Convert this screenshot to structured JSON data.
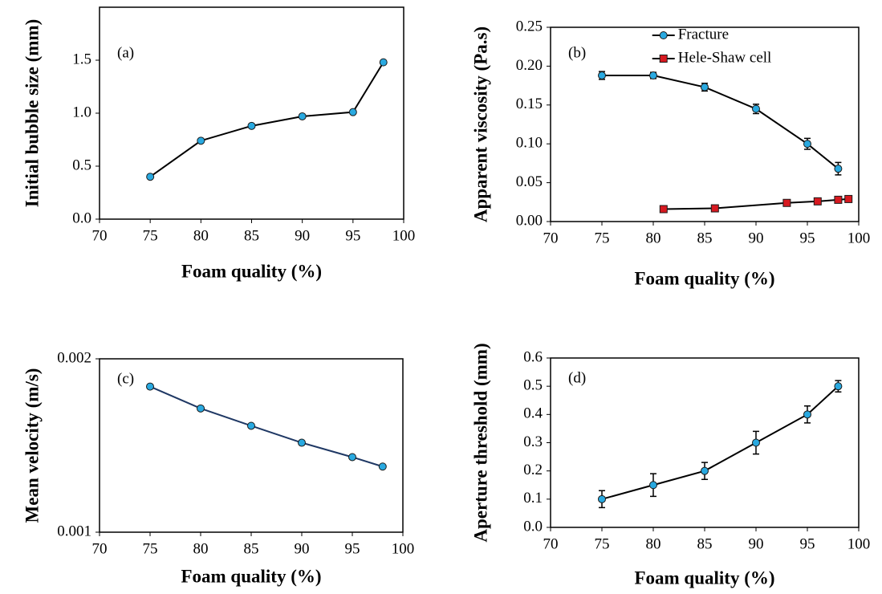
{
  "chart_data": [
    {
      "type": "line",
      "annotation": "(a)",
      "x_label": "Foam quality (%)",
      "y_label": "Initial bubble size (mm)",
      "xlim": [
        70,
        100
      ],
      "xticks": [
        70,
        75,
        80,
        85,
        90,
        95,
        100
      ],
      "ylim": [
        0,
        2
      ],
      "yticks": [
        {
          "value": 0,
          "label": "0.0"
        },
        0.5,
        {
          "value": 1,
          "label": "1.0"
        },
        1.5
      ],
      "series": [
        {
          "color": "#000000",
          "marker": "circle",
          "marker_color": "#29a9e0",
          "x": [
            75,
            80,
            85,
            90,
            95,
            98
          ],
          "values": [
            0.4,
            0.74,
            0.88,
            0.97,
            1.01,
            1.48
          ]
        }
      ]
    },
    {
      "type": "line",
      "annotation": "(b)",
      "x_label": "Foam quality (%)",
      "y_label": "Apparent viscosity (Pa.s)",
      "xlim": [
        70,
        100
      ],
      "xticks": [
        70,
        75,
        80,
        85,
        90,
        95,
        100
      ],
      "ylim": [
        0,
        0.25
      ],
      "yticks": [
        {
          "value": 0,
          "label": "0.00"
        },
        {
          "value": 0.05,
          "label": "0.05"
        },
        {
          "value": 0.1,
          "label": "0.10"
        },
        {
          "value": 0.15,
          "label": "0.15"
        },
        {
          "value": 0.2,
          "label": "0.20"
        },
        {
          "value": 0.25,
          "label": "0.25"
        }
      ],
      "legend": "upper right",
      "series": [
        {
          "name": "Fracture",
          "color": "#000000",
          "marker": "circle",
          "marker_color": "#29a9e0",
          "x": [
            75,
            80,
            85,
            90,
            95,
            98
          ],
          "values": [
            0.188,
            0.188,
            0.173,
            0.145,
            0.1,
            0.068
          ],
          "errors": [
            0.005,
            0.004,
            0.005,
            0.006,
            0.007,
            0.008
          ]
        },
        {
          "name": "Hele-Shaw cell",
          "color": "#000000",
          "marker": "square",
          "marker_color": "#d71920",
          "x": [
            81,
            86,
            93,
            96,
            98,
            99
          ],
          "values": [
            0.016,
            0.017,
            0.024,
            0.026,
            0.028,
            0.029
          ]
        }
      ]
    },
    {
      "type": "line",
      "annotation": "(c)",
      "x_label": "Foam quality (%)",
      "y_label": "Mean velocity (m/s)",
      "xlim": [
        70,
        100
      ],
      "xticks": [
        70,
        75,
        80,
        85,
        90,
        95,
        100
      ],
      "ylim": [
        0.001,
        0.002
      ],
      "yticks": [
        0.001,
        0.002
      ],
      "log_scale": true,
      "series": [
        {
          "color": "#1f3864",
          "marker": "circle",
          "marker_color": "#29a9e0",
          "x": [
            75,
            80,
            85,
            90,
            95,
            98
          ],
          "values": [
            0.00179,
            0.00164,
            0.00153,
            0.00143,
            0.00135,
            0.0013
          ]
        }
      ]
    },
    {
      "type": "line",
      "annotation": "(d)",
      "x_label": "Foam quality (%)",
      "y_label": "Aperture threshold (mm)",
      "xlim": [
        70,
        100
      ],
      "xticks": [
        70,
        75,
        80,
        85,
        90,
        95,
        100
      ],
      "ylim": [
        0,
        0.6
      ],
      "yticks": [
        {
          "value": 0,
          "label": "0.0"
        },
        0.1,
        0.2,
        0.3,
        0.4,
        0.5,
        0.6
      ],
      "series": [
        {
          "color": "#000000",
          "marker": "circle",
          "marker_color": "#29a9e0",
          "x": [
            75,
            80,
            85,
            90,
            95,
            98
          ],
          "values": [
            0.1,
            0.15,
            0.2,
            0.3,
            0.4,
            0.5
          ],
          "errors": [
            0.03,
            0.04,
            0.03,
            0.04,
            0.03,
            0.02
          ]
        }
      ]
    }
  ]
}
